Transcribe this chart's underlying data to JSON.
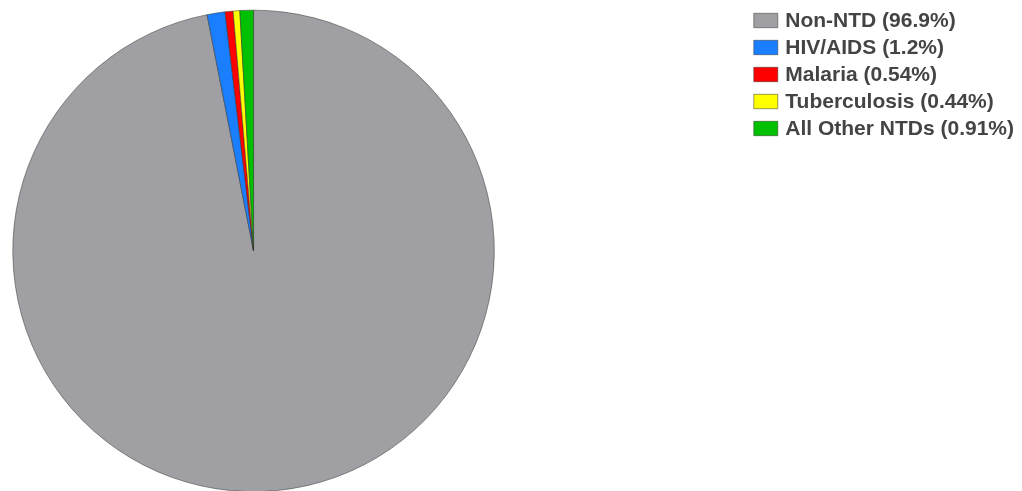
{
  "chart_data": {
    "type": "pie",
    "categories": [
      "Non-NTD (96.9%)",
      "HIV/AIDS (1.2%)",
      "Malaria (0.54%)",
      "Tuberculosis (0.44%)",
      "All Other NTDs (0.91%)"
    ],
    "values": [
      96.9,
      1.2,
      0.54,
      0.44,
      0.91
    ],
    "colors": [
      "#a0a0a4",
      "#1a7fff",
      "#ff0000",
      "#ffff00",
      "#00c000"
    ],
    "legend": "top right"
  }
}
